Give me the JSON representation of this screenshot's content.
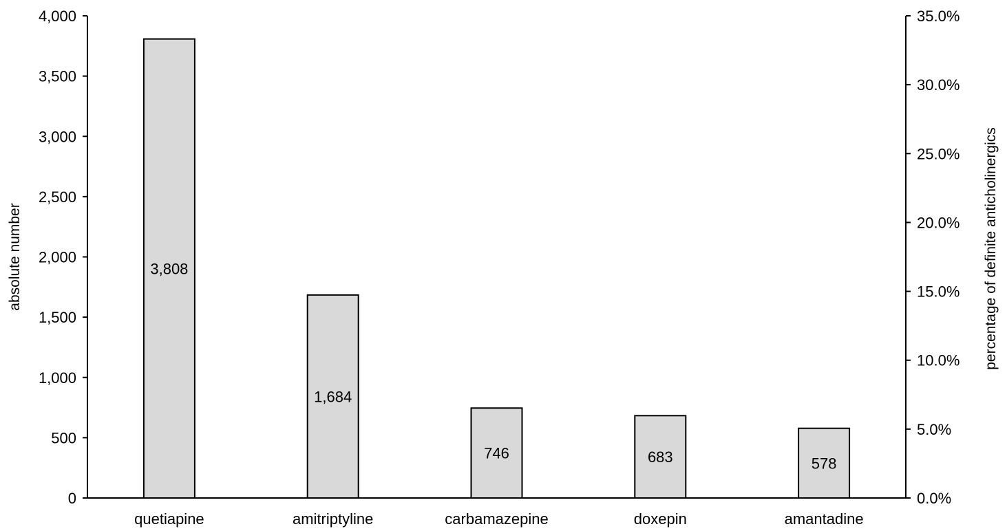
{
  "chart_data": {
    "type": "bar",
    "title": "",
    "xlabel": "",
    "ylabel": "absolute number",
    "y2label": "percentage of definite anticholinergics",
    "categories": [
      "quetiapine",
      "amitriptyline",
      "carbamazepine",
      "doxepin",
      "amantadine"
    ],
    "values": [
      3808,
      1684,
      746,
      683,
      578
    ],
    "data_labels": [
      "3,808",
      "1,684",
      "746",
      "683",
      "578"
    ],
    "ylim": [
      0,
      4000
    ],
    "y_ticks": [
      0,
      500,
      1000,
      1500,
      2000,
      2500,
      3000,
      3500,
      4000
    ],
    "y_tick_labels": [
      "0",
      "500",
      "1,000",
      "1,500",
      "2,000",
      "2,500",
      "3,000",
      "3,500",
      "4,000"
    ],
    "y2lim": [
      0,
      35
    ],
    "y2_ticks": [
      0,
      5,
      10,
      15,
      20,
      25,
      30,
      35
    ],
    "y2_tick_labels": [
      "0.0%",
      "5.0%",
      "10.0%",
      "15.0%",
      "20.0%",
      "25.0%",
      "30.0%",
      "35.0%"
    ],
    "grid": false,
    "legend": "none",
    "colors": {
      "bar_fill": "#d9d9d9",
      "bar_stroke": "#000000",
      "axis": "#000000"
    }
  }
}
